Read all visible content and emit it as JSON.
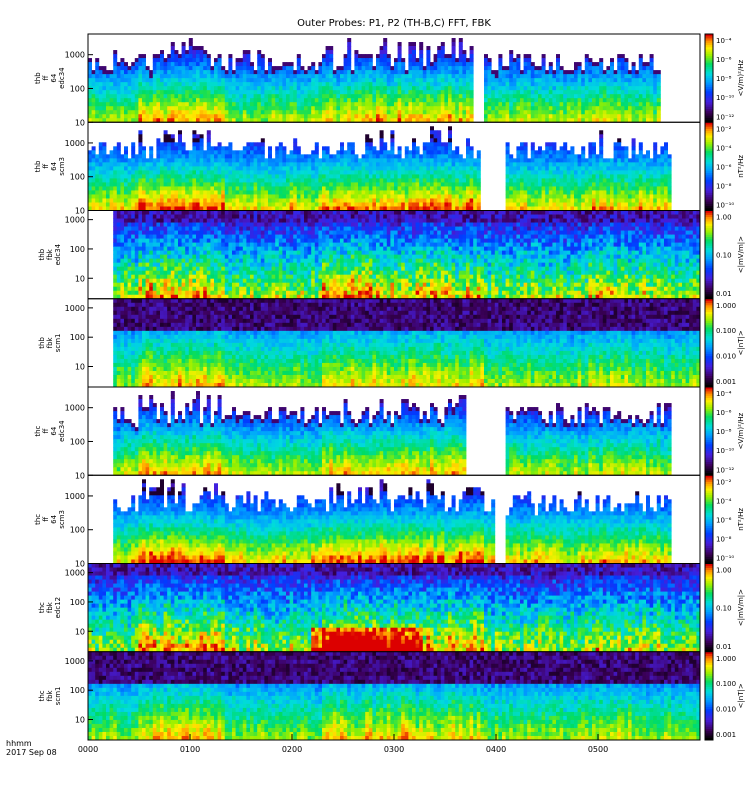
{
  "chart_data": {
    "type": "heatmap",
    "title": "Outer Probes: P1, P2 (TH-B,C) FFT, FBK",
    "footer": {
      "label_line1": "hhmm",
      "label_line2": "2017 Sep 08"
    },
    "x_ticks": [
      "0000",
      "0100",
      "0200",
      "0300",
      "0400",
      "0500"
    ],
    "x_range_hours": [
      0,
      6
    ],
    "panels": [
      {
        "id": "thb-ff-64-edc34",
        "ylabel": [
          "thb",
          "ff",
          "64",
          "edc34"
        ],
        "y_ticks": [
          "10",
          "100",
          "1000"
        ],
        "y_range": [
          10,
          4096
        ],
        "units": "<V/m)²/Hz",
        "colorbar_ticks": [
          "10⁻⁴",
          "10⁻⁶",
          "10⁻⁸",
          "10⁻¹⁰",
          "10⁻¹²"
        ],
        "style": "fft-e",
        "data_start_hours": 0.0,
        "gaps_hours": [
          [
            3.78,
            3.9
          ],
          [
            5.62,
            6.0
          ]
        ]
      },
      {
        "id": "thb-ff-64-scm3",
        "ylabel": [
          "thb",
          "ff",
          "64",
          "scm3"
        ],
        "y_ticks": [
          "10",
          "100",
          "1000"
        ],
        "y_range": [
          10,
          4096
        ],
        "units": "nT²/Hz",
        "colorbar_ticks": [
          "10⁻²",
          "10⁻⁴",
          "10⁻⁶",
          "10⁻⁸",
          "10⁻¹⁰"
        ],
        "style": "fft-b",
        "data_start_hours": 0.0,
        "gaps_hours": [
          [
            3.85,
            4.08
          ],
          [
            5.72,
            6.0
          ]
        ]
      },
      {
        "id": "thb-fbk-edc34",
        "ylabel": [
          "thb",
          "fbk",
          "edc34"
        ],
        "y_ticks": [
          "10",
          "100",
          "1000"
        ],
        "y_range": [
          2,
          2048
        ],
        "units": "<|mV/m|>",
        "colorbar_ticks": [
          "1.00",
          "0.10",
          "0.01"
        ],
        "style": "fbk-e",
        "data_start_hours": 0.28,
        "gaps_hours": []
      },
      {
        "id": "thb-fbk-scm1",
        "ylabel": [
          "thb",
          "fbk",
          "scm1"
        ],
        "y_ticks": [
          "10",
          "100",
          "1000"
        ],
        "y_range": [
          2,
          2048
        ],
        "units": "<|nT|>",
        "colorbar_ticks": [
          "1.000",
          "0.100",
          "0.010",
          "0.001"
        ],
        "style": "fbk-b",
        "data_start_hours": 0.28,
        "gaps_hours": []
      },
      {
        "id": "thc-ff-64-edc34",
        "ylabel": [
          "thc",
          "ff",
          "64",
          "edc34"
        ],
        "y_ticks": [
          "10",
          "100",
          "1000"
        ],
        "y_range": [
          10,
          4096
        ],
        "units": "<V/m)²/Hz",
        "colorbar_ticks": [
          "10⁻⁴",
          "10⁻⁶",
          "10⁻⁸",
          "10⁻¹⁰",
          "10⁻¹²"
        ],
        "style": "fft-e",
        "data_start_hours": 0.28,
        "gaps_hours": [
          [
            3.72,
            4.08
          ],
          [
            5.72,
            6.0
          ]
        ]
      },
      {
        "id": "thc-ff-64-scm3",
        "ylabel": [
          "thc",
          "ff",
          "64",
          "scm3"
        ],
        "y_ticks": [
          "10",
          "100",
          "1000"
        ],
        "y_range": [
          10,
          4096
        ],
        "units": "nT²/Hz",
        "colorbar_ticks": [
          "10⁻²",
          "10⁻⁴",
          "10⁻⁶",
          "10⁻⁸",
          "10⁻¹⁰"
        ],
        "style": "fft-b",
        "data_start_hours": 0.28,
        "gaps_hours": [
          [
            3.99,
            4.1
          ],
          [
            5.72,
            6.0
          ]
        ]
      },
      {
        "id": "thc-fbk-edc12",
        "ylabel": [
          "thc",
          "fbk",
          "edc12"
        ],
        "y_ticks": [
          "10",
          "100",
          "1000"
        ],
        "y_range": [
          2,
          2048
        ],
        "units": "<|mV/m|>",
        "colorbar_ticks": [
          "1.00",
          "0.10",
          "0.01"
        ],
        "style": "fbk-e-strong",
        "data_start_hours": 0.0,
        "gaps_hours": []
      },
      {
        "id": "thc-fbk-scm1",
        "ylabel": [
          "thc",
          "fbk",
          "scm1"
        ],
        "y_ticks": [
          "10",
          "100",
          "1000"
        ],
        "y_range": [
          2,
          2048
        ],
        "units": "<|nT|>",
        "colorbar_ticks": [
          "1.000",
          "0.100",
          "0.010",
          "0.001"
        ],
        "style": "fbk-b",
        "data_start_hours": 0.0,
        "gaps_hours": []
      }
    ]
  }
}
